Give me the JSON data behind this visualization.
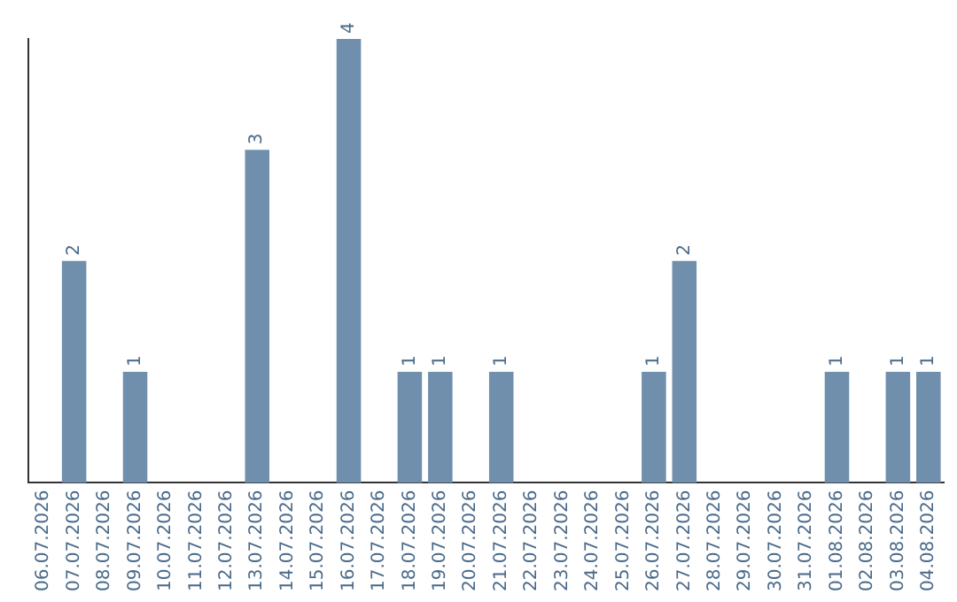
{
  "chart_data": {
    "type": "bar",
    "categories": [
      "06.07.2026",
      "07.07.2026",
      "08.07.2026",
      "09.07.2026",
      "10.07.2026",
      "11.07.2026",
      "12.07.2026",
      "13.07.2026",
      "14.07.2026",
      "15.07.2026",
      "16.07.2026",
      "17.07.2026",
      "18.07.2026",
      "19.07.2026",
      "20.07.2026",
      "21.07.2026",
      "22.07.2026",
      "23.07.2026",
      "24.07.2026",
      "25.07.2026",
      "26.07.2026",
      "27.07.2026",
      "28.07.2026",
      "29.07.2026",
      "30.07.2026",
      "31.07.2026",
      "01.08.2026",
      "02.08.2026",
      "03.08.2026",
      "04.08.2026"
    ],
    "values": [
      0,
      2,
      0,
      1,
      0,
      0,
      0,
      3,
      0,
      0,
      4,
      0,
      1,
      1,
      0,
      1,
      0,
      0,
      0,
      0,
      1,
      2,
      0,
      0,
      0,
      0,
      1,
      0,
      1,
      1
    ],
    "value_labels": [
      null,
      "2",
      null,
      "1",
      null,
      null,
      null,
      "3",
      null,
      null,
      "4",
      null,
      "1",
      "1",
      null,
      "1",
      null,
      null,
      null,
      null,
      "1",
      "2",
      null,
      null,
      null,
      null,
      "1",
      null,
      "1",
      "1"
    ],
    "color": "#6f8fad",
    "grid": false,
    "legend": false
  }
}
